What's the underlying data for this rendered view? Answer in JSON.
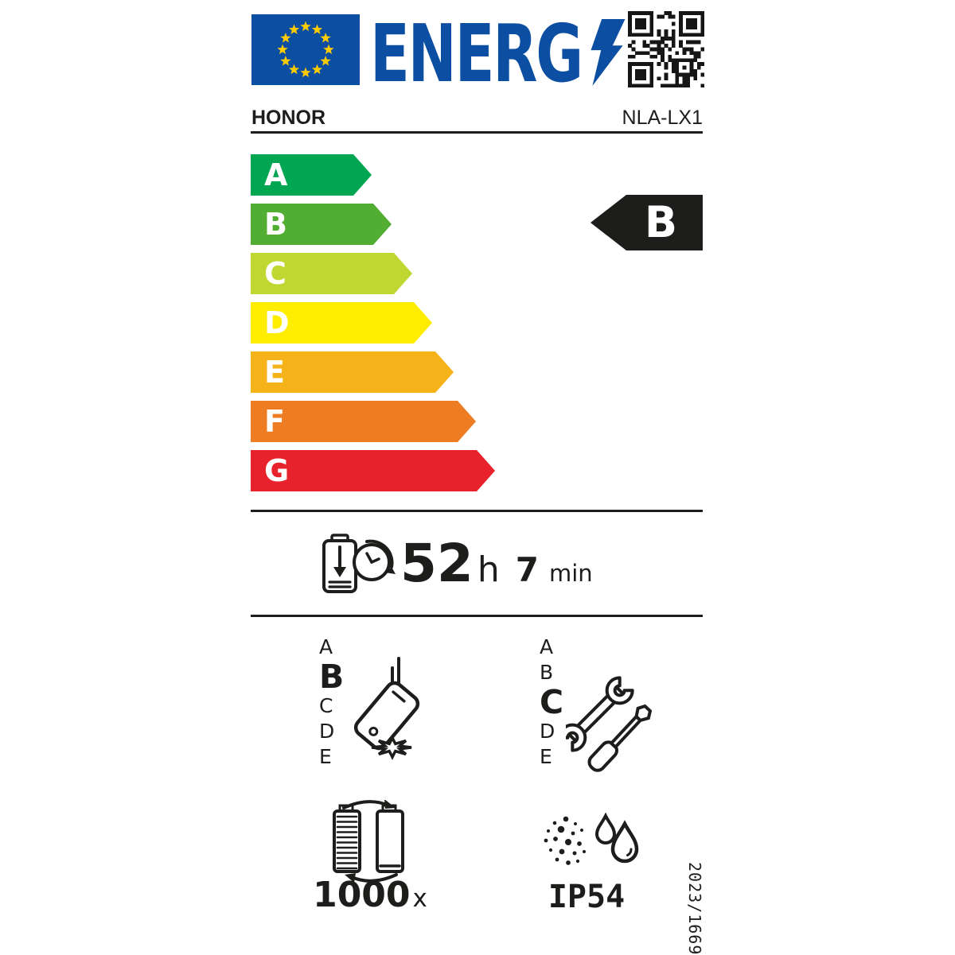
{
  "header": {
    "energy_logo_text": "ENERG",
    "supplier": "HONOR",
    "model": "NLA-LX1"
  },
  "efficiency_scale": {
    "classes": [
      {
        "label": "A",
        "color": "#00a651"
      },
      {
        "label": "B",
        "color": "#52ae32"
      },
      {
        "label": "C",
        "color": "#bfd730"
      },
      {
        "label": "D",
        "color": "#ffed00"
      },
      {
        "label": "E",
        "color": "#f6b219"
      },
      {
        "label": "F",
        "color": "#ee7c22"
      },
      {
        "label": "G",
        "color": "#e8222d"
      }
    ],
    "rating": "B"
  },
  "battery_endurance": {
    "hours": "52",
    "hours_unit": "h",
    "minutes": "7",
    "minutes_unit": "min"
  },
  "drop_reliability": {
    "scale": [
      "A",
      "B",
      "C",
      "D",
      "E"
    ],
    "rating": "B"
  },
  "repairability": {
    "scale": [
      "A",
      "B",
      "C",
      "D",
      "E"
    ],
    "rating": "C"
  },
  "battery_cycles": {
    "count": "1000",
    "suffix": "x"
  },
  "ingress_protection": {
    "rating": "IP54"
  },
  "regulation_number": "2023/1669",
  "colors": {
    "eu_blue": "#0b4ea2",
    "star_yellow": "#ffcc00",
    "black": "#1d1d1b"
  },
  "icons": {
    "flag": "eu-flag",
    "logo_bolt": "lightning-bolt-icon",
    "qr": "qr-code",
    "endurance": "battery-discharge-clock-icon",
    "reliability": "falling-phone-icon",
    "repairability": "wrench-screwdriver-icon",
    "cycles": "battery-recharge-cycle-icon",
    "ingress": "dust-and-water-icon"
  }
}
